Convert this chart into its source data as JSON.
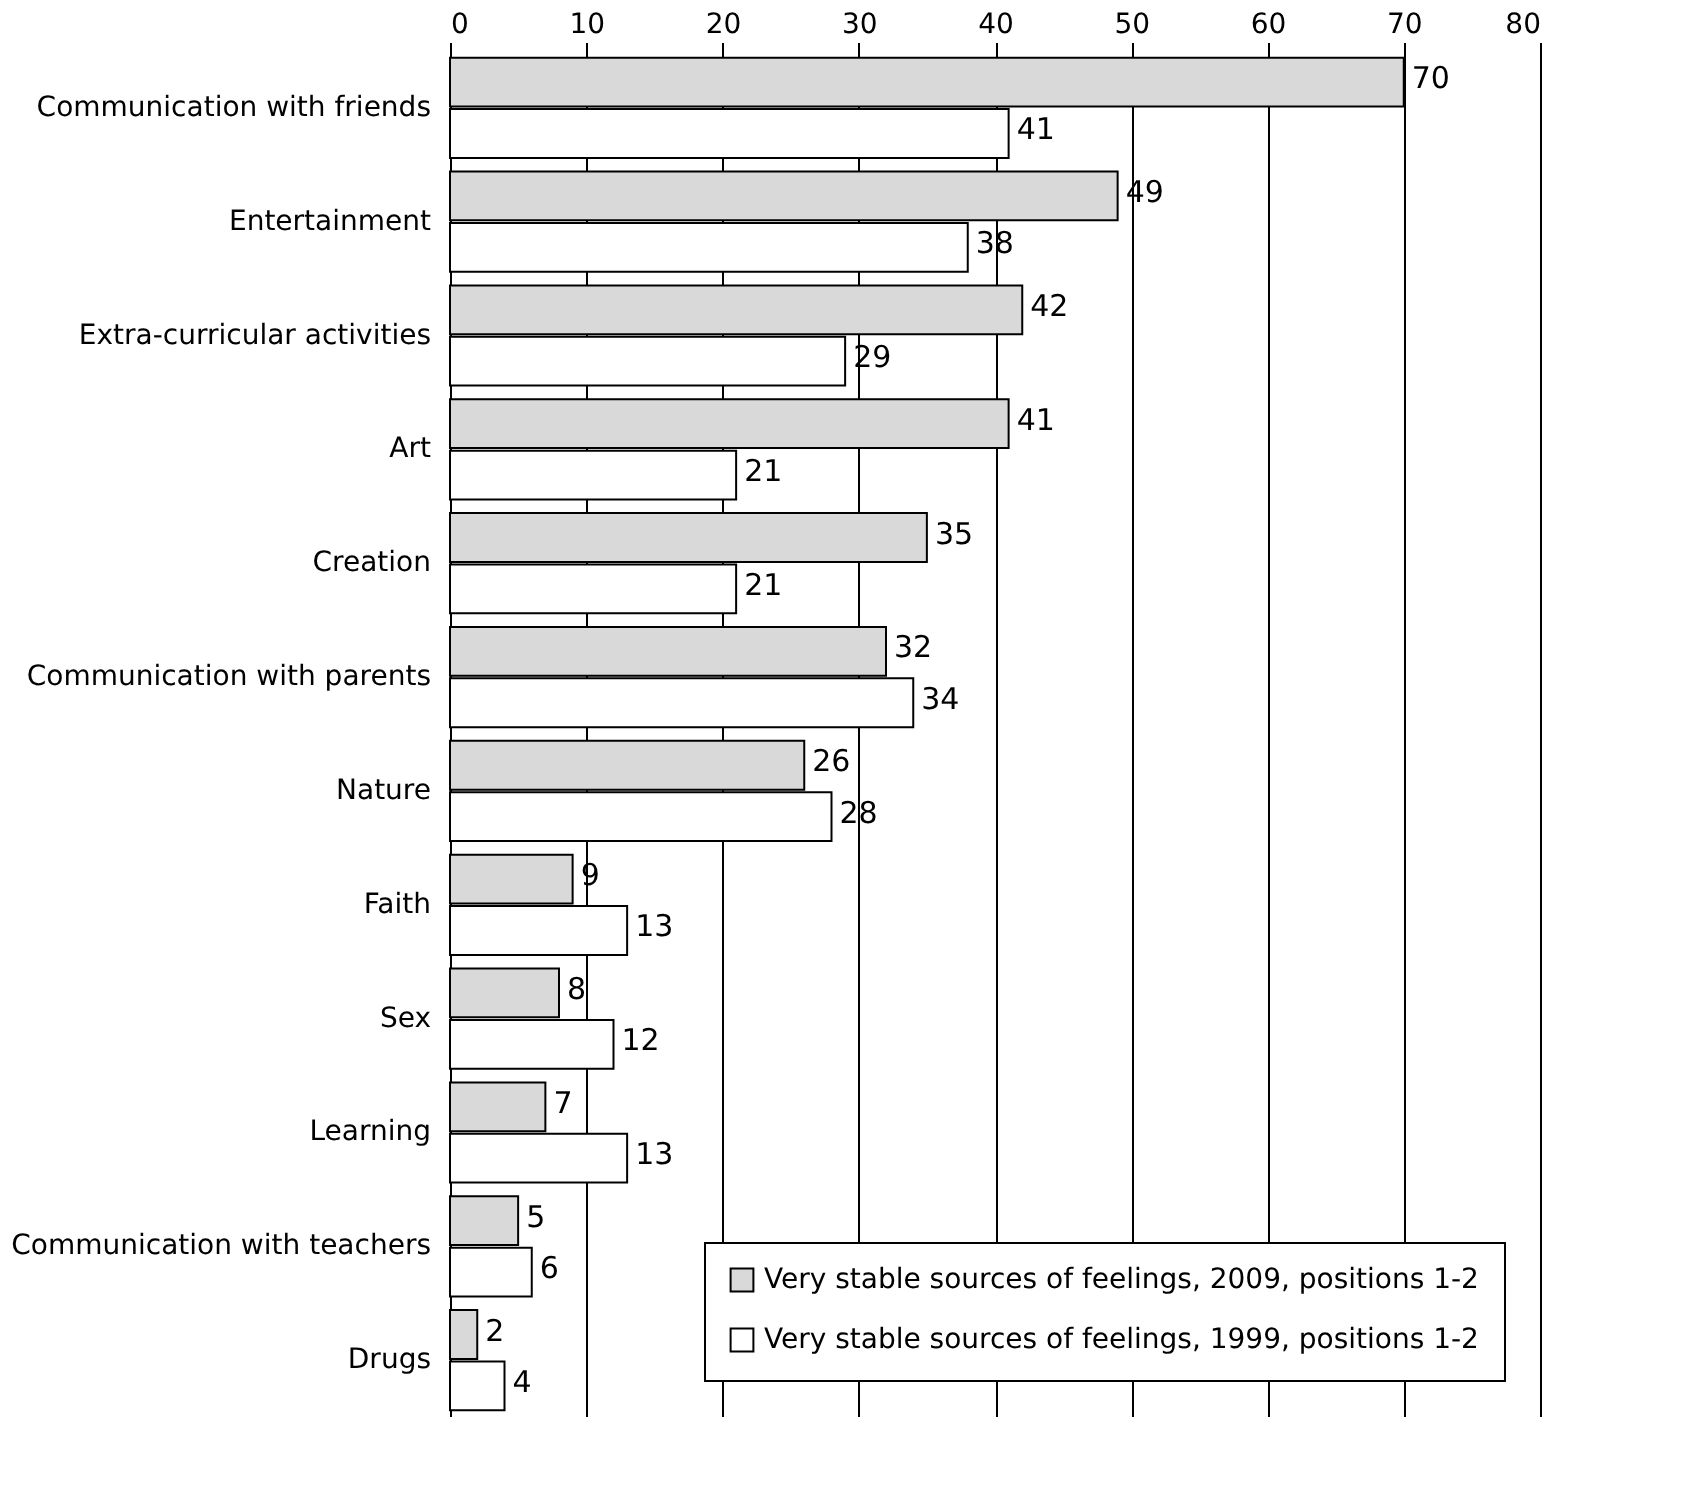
{
  "chart_data": {
    "type": "bar",
    "orientation": "horizontal",
    "categories": [
      "Communication with friends",
      "Entertainment",
      "Extra-curricular activities",
      "Art",
      "Creation",
      "Communication with parents",
      "Nature",
      "Faith",
      "Sex",
      "Learning",
      "Communication with teachers",
      "Drugs"
    ],
    "series": [
      {
        "name": "Very stable sources of feelings, 2009, positions 1-2",
        "color": "#d9d9d9",
        "values": [
          70,
          49,
          42,
          41,
          35,
          32,
          26,
          9,
          8,
          7,
          5,
          2
        ]
      },
      {
        "name": "Very stable sources of feelings, 1999, positions 1-2",
        "color": "#ffffff",
        "values": [
          41,
          38,
          29,
          21,
          21,
          34,
          28,
          13,
          12,
          13,
          6,
          4
        ]
      }
    ],
    "xlim": [
      0,
      80
    ],
    "xticks": [
      0,
      10,
      20,
      30,
      40,
      50,
      60,
      70,
      80
    ],
    "grid": "x",
    "data_labels": true,
    "legend": "bottom right"
  }
}
